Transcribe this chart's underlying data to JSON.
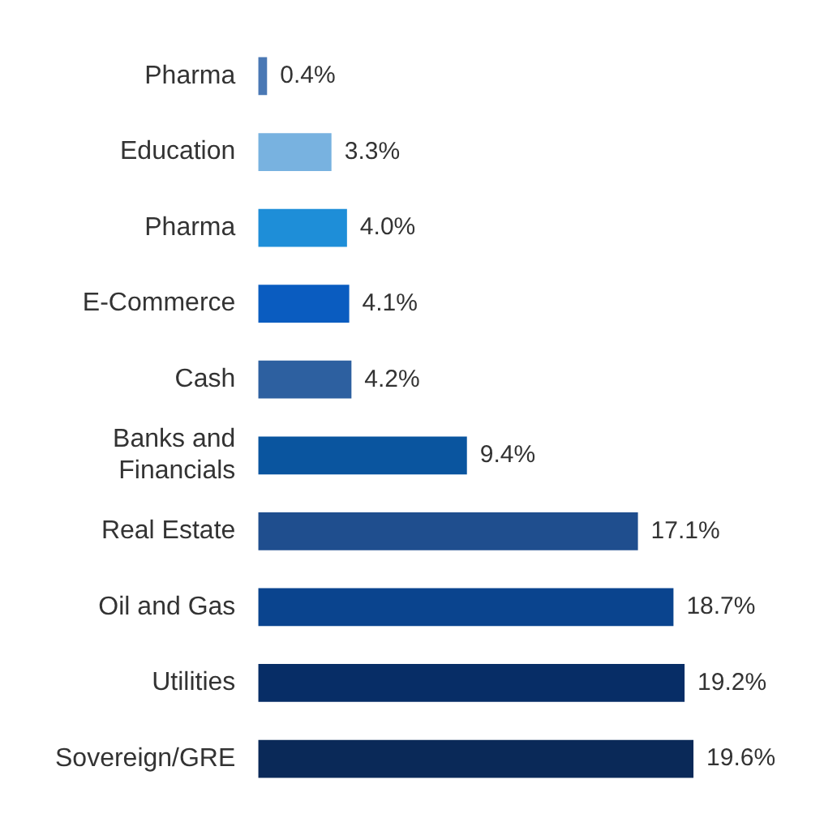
{
  "chart_data": {
    "type": "bar",
    "orientation": "horizontal",
    "categories": [
      "Pharma",
      "Education",
      "Pharma",
      "E-Commerce",
      "Cash",
      "Banks and Financials",
      "Real Estate",
      "Oil and Gas",
      "Utilities",
      "Sovereign/GRE"
    ],
    "values": [
      0.4,
      3.3,
      4.0,
      4.1,
      4.2,
      9.4,
      17.1,
      18.7,
      19.2,
      19.6
    ],
    "colors": [
      "#4a78b4",
      "#78b2e0",
      "#1e8ed8",
      "#0a5cc0",
      "#2d60a0",
      "#0a559f",
      "#1f4e8e",
      "#0a448e",
      "#072d66",
      "#0a2958"
    ],
    "value_labels": [
      "0.4%",
      "3.3%",
      "4.0%",
      "4.1%",
      "4.2%",
      "9.4%",
      "17.1%",
      "18.7%",
      "19.2%",
      "19.6%"
    ],
    "tick_labels": "y",
    "legend": false
  }
}
